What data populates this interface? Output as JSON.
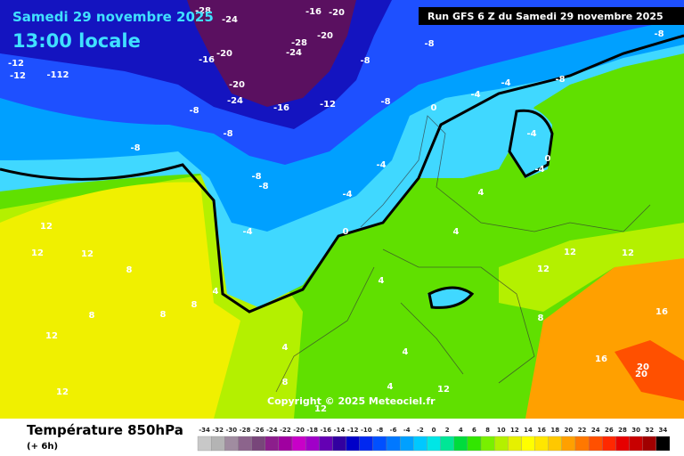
{
  "header": {
    "date": "Samedi 29 novembre 2025",
    "time": "13:00 locale",
    "run": "Run GFS 6 Z du Samedi 29 novembre 2025"
  },
  "copyright": "Copyright © 2025 Meteociel.fr",
  "legend": {
    "title": "Température 850hPa",
    "subtitle": "(+ 6h)",
    "values": [
      -34,
      -32,
      -30,
      -28,
      -26,
      -24,
      -22,
      -20,
      -18,
      -16,
      -14,
      -12,
      -10,
      -8,
      -6,
      -4,
      -2,
      0,
      2,
      4,
      6,
      8,
      10,
      12,
      14,
      16,
      18,
      20,
      22,
      24,
      26,
      28,
      30,
      32,
      34
    ],
    "colors": [
      "#c8c8c8",
      "#b4b4b4",
      "#a08ca0",
      "#8c648c",
      "#78467a",
      "#8c1e8c",
      "#a000a0",
      "#c800c8",
      "#a000c8",
      "#6400b4",
      "#3200a0",
      "#0000c8",
      "#0028f0",
      "#0050ff",
      "#0078ff",
      "#00a0ff",
      "#00c8ff",
      "#00e6e6",
      "#00e696",
      "#00dc3c",
      "#32e600",
      "#78f000",
      "#b4f000",
      "#e6f000",
      "#ffff00",
      "#ffe600",
      "#ffc800",
      "#ffa000",
      "#ff7800",
      "#ff5000",
      "#ff2800",
      "#e60000",
      "#c80000",
      "#a00000",
      "#000000"
    ]
  },
  "map_labels": [
    "-8",
    "-8",
    "-8",
    "-8",
    "-8",
    "-4",
    "-4",
    "0",
    "-4",
    "-8",
    "0",
    "-4",
    "-4",
    "-8",
    "-8",
    "-4",
    "0",
    "-4",
    "4",
    "4",
    "4",
    "4",
    "8",
    "8",
    "12",
    "12",
    "12",
    "12",
    "12",
    "8",
    "8",
    "8",
    "4",
    "4",
    "4",
    "12",
    "8",
    "12",
    "12",
    "12",
    "16",
    "16",
    "20",
    "20",
    "12",
    "-12",
    "-16",
    "-20",
    "-24",
    "-20",
    "-16",
    "-24",
    "-28",
    "-16",
    "-20",
    "-20",
    "-28",
    "-24",
    "-8",
    "-12",
    "-12",
    "-112",
    "-8",
    "-4"
  ]
}
